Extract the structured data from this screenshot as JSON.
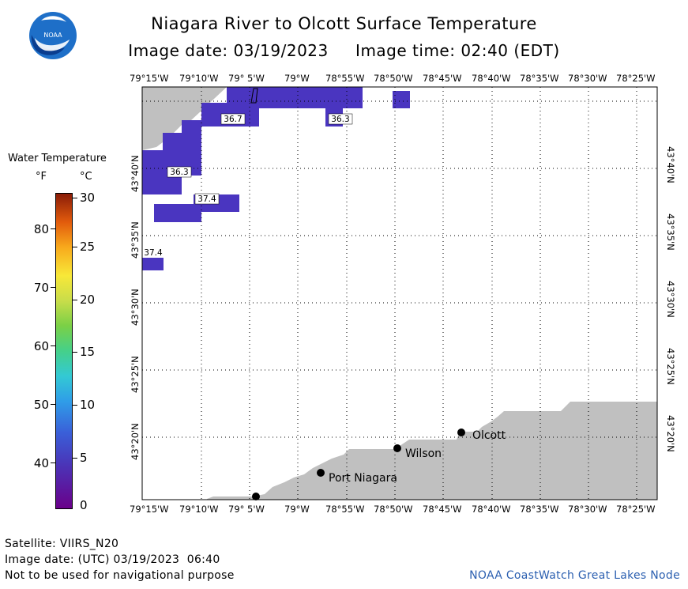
{
  "header": {
    "title": "Niagara River to Olcott Surface Temperature",
    "image_date_line": "Image date: 03/19/2023     Image time: 02:40 (EDT)"
  },
  "logo": {
    "label": "NOAA"
  },
  "legend": {
    "title": "Water Temperature",
    "unit_f": "°F",
    "unit_c": "°C",
    "f_ticks": [
      "80",
      "70",
      "60",
      "50",
      "40"
    ],
    "c_ticks": [
      "30",
      "25",
      "20",
      "15",
      "10",
      "5",
      "0"
    ]
  },
  "map": {
    "top_lon_labels": [
      "79°15'W",
      "79°10'W",
      "79° 5'W",
      "79°W",
      "78°55'W",
      "78°50'W",
      "78°45'W",
      "78°40'W",
      "78°35'W",
      "78°30'W",
      "78°25'W"
    ],
    "bottom_lon_labels": [
      "79°15'W",
      "79°10'W",
      "79° 5'W",
      "79°W",
      "78°55'W",
      "78°50'W",
      "78°45'W",
      "78°40'W",
      "78°35'W",
      "78°30'W",
      "78°25'W"
    ],
    "lat_labels": [
      "43°40'N",
      "43°35'N",
      "43°30'N",
      "43°25'N",
      "43°20'N"
    ],
    "temperature_labels": [
      "36.7",
      "36.3",
      "36.3",
      "37.4",
      "37.4"
    ],
    "places": [
      "Olcott",
      "Wilson",
      "Port Niagara"
    ],
    "colors": {
      "land": "#c0c0c0",
      "water_temp": "#4a35c0",
      "grid": "#000000"
    }
  },
  "footer": {
    "satellite": "Satellite: VIIRS_N20",
    "utc_date": "Image date: (UTC) 03/19/2023  06:40",
    "disclaimer": "Not to be used for navigational purpose",
    "credit": "NOAA CoastWatch Great Lakes Node"
  }
}
